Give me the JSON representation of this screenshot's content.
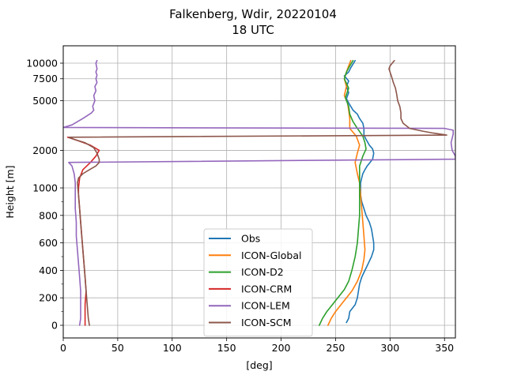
{
  "chart_data": {
    "type": "line",
    "title": "Falkenberg, Wdir, 20220104",
    "subtitle": "18 UTC",
    "xlabel": "[deg]",
    "ylabel": "Height [m]",
    "xlim": [
      0,
      360
    ],
    "x_ticks": [
      0,
      50,
      100,
      150,
      200,
      250,
      300,
      350
    ],
    "y_scale": "piecewise: linear 0-1000 m, log 1000-10000 m",
    "y_ticks": [
      0,
      200,
      400,
      600,
      800,
      1000,
      2000,
      5000,
      7500,
      10000
    ],
    "y_tick_labels": [
      "0",
      "200",
      "400",
      "600",
      "800",
      "1000",
      "2000",
      "5000",
      "7500",
      "10000"
    ],
    "grid": true,
    "legend_position": "lower-center",
    "series": [
      {
        "name": "Obs",
        "color": "#1f77b4",
        "points": [
          [
            260,
            20
          ],
          [
            262,
            50
          ],
          [
            263,
            100
          ],
          [
            268,
            150
          ],
          [
            270,
            200
          ],
          [
            271,
            250
          ],
          [
            272,
            300
          ],
          [
            274,
            350
          ],
          [
            277,
            400
          ],
          [
            280,
            450
          ],
          [
            283,
            500
          ],
          [
            285,
            550
          ],
          [
            285,
            600
          ],
          [
            284,
            650
          ],
          [
            283,
            700
          ],
          [
            281,
            750
          ],
          [
            278,
            800
          ],
          [
            276,
            850
          ],
          [
            274,
            900
          ],
          [
            273,
            950
          ],
          [
            273,
            1000
          ],
          [
            273,
            1100
          ],
          [
            274,
            1200
          ],
          [
            275,
            1300
          ],
          [
            277,
            1400
          ],
          [
            279,
            1500
          ],
          [
            284,
            1700
          ],
          [
            285,
            1900
          ],
          [
            284,
            2050
          ],
          [
            281,
            2200
          ],
          [
            278,
            2450
          ],
          [
            276,
            2650
          ],
          [
            276,
            3000
          ],
          [
            275,
            3300
          ],
          [
            272,
            3600
          ],
          [
            270,
            3900
          ],
          [
            266,
            4200
          ],
          [
            264,
            4500
          ],
          [
            262,
            4800
          ],
          [
            260,
            5200
          ],
          [
            262,
            5800
          ],
          [
            260,
            6500
          ],
          [
            262,
            7200
          ],
          [
            258,
            7900
          ],
          [
            262,
            8500
          ],
          [
            264,
            9200
          ],
          [
            268,
            10500
          ]
        ]
      },
      {
        "name": "ICON-Global",
        "color": "#ff7f0e",
        "points": [
          [
            243,
            0
          ],
          [
            246,
            50
          ],
          [
            250,
            100
          ],
          [
            255,
            150
          ],
          [
            260,
            200
          ],
          [
            265,
            250
          ],
          [
            270,
            320
          ],
          [
            274,
            400
          ],
          [
            276,
            480
          ],
          [
            277,
            550
          ],
          [
            276,
            650
          ],
          [
            275,
            750
          ],
          [
            274,
            850
          ],
          [
            273,
            950
          ],
          [
            272,
            1100
          ],
          [
            270,
            1300
          ],
          [
            268,
            1600
          ],
          [
            270,
            1900
          ],
          [
            272,
            2200
          ],
          [
            269,
            2600
          ],
          [
            263,
            3000
          ],
          [
            263,
            3600
          ],
          [
            262,
            4200
          ],
          [
            261,
            4800
          ],
          [
            258,
            5500
          ],
          [
            260,
            6500
          ],
          [
            258,
            7500
          ],
          [
            260,
            8500
          ],
          [
            262,
            9500
          ],
          [
            264,
            10500
          ]
        ]
      },
      {
        "name": "ICON-D2",
        "color": "#2ca02c",
        "points": [
          [
            235,
            0
          ],
          [
            238,
            50
          ],
          [
            242,
            100
          ],
          [
            248,
            160
          ],
          [
            252,
            200
          ],
          [
            258,
            260
          ],
          [
            262,
            320
          ],
          [
            265,
            400
          ],
          [
            268,
            500
          ],
          [
            270,
            600
          ],
          [
            271,
            700
          ],
          [
            272,
            800
          ],
          [
            272,
            900
          ],
          [
            272,
            1000
          ],
          [
            272,
            1200
          ],
          [
            272,
            1500
          ],
          [
            275,
            1800
          ],
          [
            278,
            2050
          ],
          [
            277,
            2300
          ],
          [
            275,
            2600
          ],
          [
            270,
            3000
          ],
          [
            266,
            3400
          ],
          [
            263,
            3900
          ],
          [
            262,
            4500
          ],
          [
            259,
            5300
          ],
          [
            262,
            6300
          ],
          [
            258,
            7500
          ],
          [
            260,
            8500
          ],
          [
            263,
            9500
          ],
          [
            266,
            10500
          ]
        ]
      },
      {
        "name": "ICON-CRM",
        "color": "#d62728",
        "points": [
          [
            20,
            0
          ],
          [
            20,
            50
          ],
          [
            20,
            150
          ],
          [
            21,
            250
          ],
          [
            20,
            350
          ],
          [
            19,
            450
          ],
          [
            18,
            550
          ],
          [
            17,
            650
          ],
          [
            16,
            750
          ],
          [
            15,
            850
          ],
          [
            14,
            950
          ],
          [
            14,
            1000
          ],
          [
            15,
            1200
          ],
          [
            18,
            1400
          ],
          [
            25,
            1600
          ],
          [
            30,
            1800
          ],
          [
            33,
            2000
          ],
          [
            25,
            2200
          ],
          [
            13,
            2400
          ],
          [
            4,
            2550
          ]
        ]
      },
      {
        "name": "ICON-LEM",
        "color": "#9467bd",
        "points": [
          [
            15,
            0
          ],
          [
            16,
            50
          ],
          [
            16,
            150
          ],
          [
            16,
            250
          ],
          [
            15,
            350
          ],
          [
            14,
            450
          ],
          [
            13,
            550
          ],
          [
            12,
            650
          ],
          [
            12,
            750
          ],
          [
            11,
            850
          ],
          [
            11,
            950
          ],
          [
            11,
            1100
          ],
          [
            10,
            1300
          ],
          [
            8,
            1500
          ],
          [
            5,
            1600
          ],
          [
            360,
            1700
          ],
          [
            360,
            1800
          ],
          [
            357,
            2000
          ],
          [
            356,
            2300
          ],
          [
            358,
            2700
          ],
          [
            358,
            2900
          ],
          [
            350,
            3000
          ],
          [
            0,
            3050
          ],
          [
            8,
            3200
          ],
          [
            18,
            3600
          ],
          [
            26,
            4000
          ],
          [
            28,
            4200
          ],
          [
            27,
            4500
          ],
          [
            29,
            5000
          ],
          [
            28,
            5500
          ],
          [
            30,
            6000
          ],
          [
            29,
            6500
          ],
          [
            31,
            7000
          ],
          [
            30,
            7500
          ],
          [
            31,
            8000
          ],
          [
            30,
            8500
          ],
          [
            31,
            9000
          ],
          [
            30,
            10000
          ],
          [
            31,
            10500
          ]
        ]
      },
      {
        "name": "ICON-SCM",
        "color": "#8c564b",
        "points": [
          [
            24,
            0
          ],
          [
            23,
            50
          ],
          [
            22,
            150
          ],
          [
            21,
            250
          ],
          [
            20,
            350
          ],
          [
            19,
            450
          ],
          [
            18,
            550
          ],
          [
            17,
            650
          ],
          [
            16,
            750
          ],
          [
            15,
            850
          ],
          [
            14,
            950
          ],
          [
            13,
            1100
          ],
          [
            14,
            1200
          ],
          [
            18,
            1300
          ],
          [
            24,
            1400
          ],
          [
            30,
            1500
          ],
          [
            33,
            1600
          ],
          [
            33,
            1700
          ],
          [
            31,
            1900
          ],
          [
            28,
            2100
          ],
          [
            20,
            2300
          ],
          [
            10,
            2450
          ],
          [
            5,
            2550
          ],
          [
            352,
            2650
          ],
          [
            340,
            2750
          ],
          [
            330,
            2850
          ],
          [
            318,
            3000
          ],
          [
            312,
            3300
          ],
          [
            310,
            3600
          ],
          [
            310,
            4000
          ],
          [
            309,
            4500
          ],
          [
            307,
            5000
          ],
          [
            306,
            5700
          ],
          [
            305,
            6300
          ],
          [
            303,
            7000
          ],
          [
            302,
            7500
          ],
          [
            301,
            8000
          ],
          [
            300,
            8500
          ],
          [
            299,
            9000
          ],
          [
            300,
            9500
          ],
          [
            302,
            10000
          ],
          [
            304,
            10500
          ]
        ]
      }
    ]
  }
}
